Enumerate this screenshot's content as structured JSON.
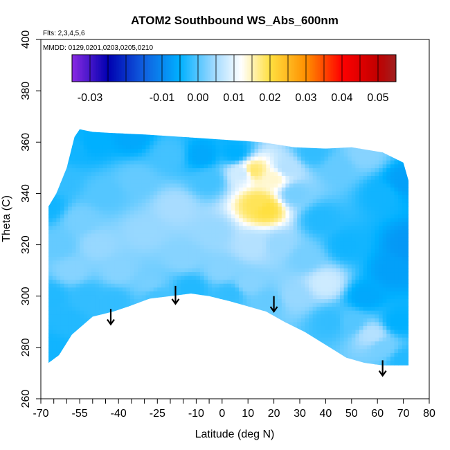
{
  "chart_data": {
    "type": "heatmap",
    "title": "ATOM2 Southbound WS_Abs_600nm",
    "subtitle_flights": "Flts: 2,3,4,5,6",
    "subtitle_dates": "MMDD: 0129,0201,0203,0205,0210",
    "xlabel": "Latitude (deg N)",
    "ylabel": "Theta (C)",
    "xlim": [
      -70,
      80
    ],
    "ylim": [
      260,
      400
    ],
    "x_ticks": [
      -70,
      -55,
      -40,
      -25,
      -10,
      0,
      10,
      20,
      30,
      40,
      50,
      60,
      70,
      80
    ],
    "x_tick_labels": [
      "-70",
      "-55",
      "-40",
      "-25",
      "-10",
      "0",
      "10",
      "20",
      "30",
      "40",
      "50",
      "60",
      "70",
      "80"
    ],
    "x_minor_ticks": [
      -65,
      -60,
      -50,
      -45,
      -35,
      -30,
      -20,
      -15,
      -5
    ],
    "y_ticks": [
      260,
      280,
      300,
      320,
      340,
      360,
      380,
      400
    ],
    "y_tick_labels": [
      "260",
      "280",
      "300",
      "320",
      "340",
      "360",
      "380",
      "400"
    ],
    "grid": false,
    "colorbar": {
      "placement": "top",
      "range": [
        -0.035,
        0.055
      ],
      "breaks": [
        -0.035,
        -0.03,
        -0.025,
        -0.02,
        -0.015,
        -0.01,
        -0.005,
        0.0,
        0.005,
        0.01,
        0.015,
        0.02,
        0.025,
        0.03,
        0.035,
        0.04,
        0.045,
        0.05,
        0.055
      ],
      "tick_values": [
        -0.03,
        -0.01,
        0.0,
        0.01,
        0.02,
        0.03,
        0.04,
        0.05
      ],
      "tick_labels": [
        "-0.03",
        "-0.01",
        "0.00",
        "0.01",
        "0.02",
        "0.03",
        "0.04",
        "0.05"
      ],
      "colors": [
        {
          "v": -0.035,
          "c": "#8a2be2"
        },
        {
          "v": -0.025,
          "c": "#0000b0"
        },
        {
          "v": -0.015,
          "c": "#1060e0"
        },
        {
          "v": -0.005,
          "c": "#00b0ff"
        },
        {
          "v": 0.005,
          "c": "#a8dcff"
        },
        {
          "v": 0.012,
          "c": "#ffffff"
        },
        {
          "v": 0.02,
          "c": "#ffe040"
        },
        {
          "v": 0.03,
          "c": "#ff9000"
        },
        {
          "v": 0.04,
          "c": "#ff0000"
        },
        {
          "v": 0.05,
          "c": "#c00000"
        },
        {
          "v": 0.055,
          "c": "#a02020"
        }
      ]
    },
    "data_hull": [
      [
        -67,
        274
      ],
      [
        -63,
        277
      ],
      [
        -58,
        285
      ],
      [
        -50,
        292
      ],
      [
        -42,
        294
      ],
      [
        -36,
        296
      ],
      [
        -28,
        299
      ],
      [
        -20,
        300
      ],
      [
        -12,
        301
      ],
      [
        -5,
        300
      ],
      [
        3,
        298
      ],
      [
        10,
        296
      ],
      [
        17,
        294
      ],
      [
        24,
        290
      ],
      [
        32,
        286
      ],
      [
        40,
        281
      ],
      [
        48,
        276
      ],
      [
        55,
        274
      ],
      [
        62,
        273
      ],
      [
        72,
        273
      ],
      [
        72,
        345
      ],
      [
        70,
        352
      ],
      [
        62,
        356
      ],
      [
        50,
        358
      ],
      [
        40,
        357.5
      ],
      [
        28,
        358
      ],
      [
        15,
        360
      ],
      [
        0,
        361
      ],
      [
        -15,
        362
      ],
      [
        -30,
        363
      ],
      [
        -42,
        363.5
      ],
      [
        -50,
        364
      ],
      [
        -55,
        365
      ],
      [
        -57,
        362
      ],
      [
        -60,
        350
      ],
      [
        -64,
        340
      ],
      [
        -67,
        335
      ]
    ],
    "field_points": [
      [
        -67,
        335,
        -0.004
      ],
      [
        -66,
        300,
        -0.003
      ],
      [
        -66,
        280,
        -0.004
      ],
      [
        -62,
        345,
        -0.002
      ],
      [
        -63,
        320,
        0.001
      ],
      [
        -60,
        290,
        -0.003
      ],
      [
        -58,
        310,
        0.003
      ],
      [
        -57,
        358,
        -0.004
      ],
      [
        -55,
        330,
        0.002
      ],
      [
        -52,
        300,
        -0.002
      ],
      [
        -50,
        360,
        -0.005
      ],
      [
        -48,
        320,
        0.004
      ],
      [
        -45,
        340,
        0.0
      ],
      [
        -42,
        298,
        -0.002
      ],
      [
        -40,
        310,
        0.003
      ],
      [
        -35,
        362,
        -0.006
      ],
      [
        -33,
        345,
        0.001
      ],
      [
        -30,
        325,
        0.004
      ],
      [
        -28,
        305,
        0.002
      ],
      [
        -25,
        300,
        -0.001
      ],
      [
        -20,
        355,
        -0.001
      ],
      [
        -18,
        335,
        0.005
      ],
      [
        -15,
        315,
        0.003
      ],
      [
        -12,
        303,
        -0.003
      ],
      [
        -8,
        355,
        -0.006
      ],
      [
        -5,
        345,
        -0.001
      ],
      [
        -3,
        325,
        0.004
      ],
      [
        0,
        310,
        0.003
      ],
      [
        3,
        301,
        -0.002
      ],
      [
        5,
        356,
        -0.005
      ],
      [
        8,
        348,
        0.008
      ],
      [
        12,
        349,
        0.018
      ],
      [
        14,
        336,
        0.019
      ],
      [
        17,
        334,
        0.02
      ],
      [
        20,
        346,
        0.014
      ],
      [
        12,
        320,
        0.006
      ],
      [
        10,
        305,
        0.003
      ],
      [
        18,
        298,
        0.001
      ],
      [
        25,
        350,
        0.006
      ],
      [
        22,
        320,
        0.004
      ],
      [
        28,
        340,
        0.002
      ],
      [
        28,
        300,
        0.004
      ],
      [
        32,
        315,
        0.002
      ],
      [
        35,
        356,
        -0.002
      ],
      [
        38,
        330,
        -0.003
      ],
      [
        40,
        305,
        0.008
      ],
      [
        42,
        290,
        -0.002
      ],
      [
        45,
        350,
        0.001
      ],
      [
        48,
        320,
        -0.004
      ],
      [
        50,
        290,
        0.0
      ],
      [
        55,
        355,
        0.003
      ],
      [
        55,
        300,
        -0.006
      ],
      [
        58,
        285,
        0.006
      ],
      [
        62,
        340,
        -0.004
      ],
      [
        62,
        280,
        0.002
      ],
      [
        66,
        310,
        -0.007
      ],
      [
        68,
        290,
        -0.005
      ],
      [
        70,
        345,
        -0.007
      ],
      [
        70,
        275,
        -0.003
      ],
      [
        72,
        320,
        -0.008
      ]
    ],
    "arrows": [
      {
        "x": -43,
        "y_from": 295,
        "y_to": 289
      },
      {
        "x": -18,
        "y_from": 304,
        "y_to": 297
      },
      {
        "x": 20,
        "y_from": 300,
        "y_to": 294
      },
      {
        "x": 62,
        "y_from": 275,
        "y_to": 269
      }
    ]
  }
}
